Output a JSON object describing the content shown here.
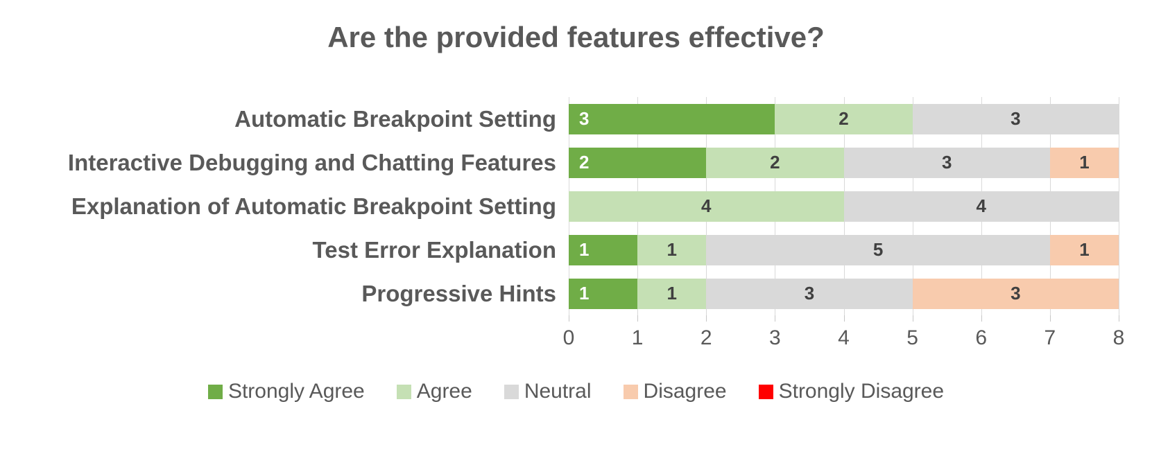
{
  "title": "Are the provided features effective?",
  "chart_data": {
    "type": "bar",
    "orientation": "horizontal",
    "stacked": true,
    "title": "Are the provided features effective?",
    "categories": [
      "Automatic Breakpoint Setting",
      "Interactive Debugging and Chatting Features",
      "Explanation of Automatic Breakpoint Setting",
      "Test Error Explanation",
      "Progressive Hints"
    ],
    "series": [
      {
        "name": "Strongly Agree",
        "color": "#70AD47",
        "label_color": "#FFFFFF",
        "label_position": "inside-base",
        "values": [
          3,
          2,
          0,
          1,
          1
        ]
      },
      {
        "name": "Agree",
        "color": "#C5E0B4",
        "label_color": "#404040",
        "label_position": "center",
        "values": [
          2,
          2,
          4,
          1,
          1
        ]
      },
      {
        "name": "Neutral",
        "color": "#D9D9D9",
        "label_color": "#404040",
        "label_position": "center",
        "values": [
          3,
          3,
          4,
          5,
          3
        ]
      },
      {
        "name": "Disagree",
        "color": "#F8CBAD",
        "label_color": "#404040",
        "label_position": "center",
        "values": [
          0,
          1,
          0,
          1,
          3
        ]
      },
      {
        "name": "Strongly Disagree",
        "color": "#FF0000",
        "label_color": "#404040",
        "label_position": "center",
        "values": [
          0,
          0,
          0,
          0,
          0
        ]
      }
    ],
    "xlim": [
      0,
      8
    ],
    "x_ticks": [
      "0",
      "1",
      "2",
      "3",
      "4",
      "5",
      "6",
      "7",
      "8"
    ],
    "grid": true,
    "legend_position": "bottom"
  },
  "styles": {
    "text_color": "#595959",
    "data_label_color": "#404040",
    "gridline_color": "#D9D9D9",
    "background": "#FFFFFF"
  }
}
